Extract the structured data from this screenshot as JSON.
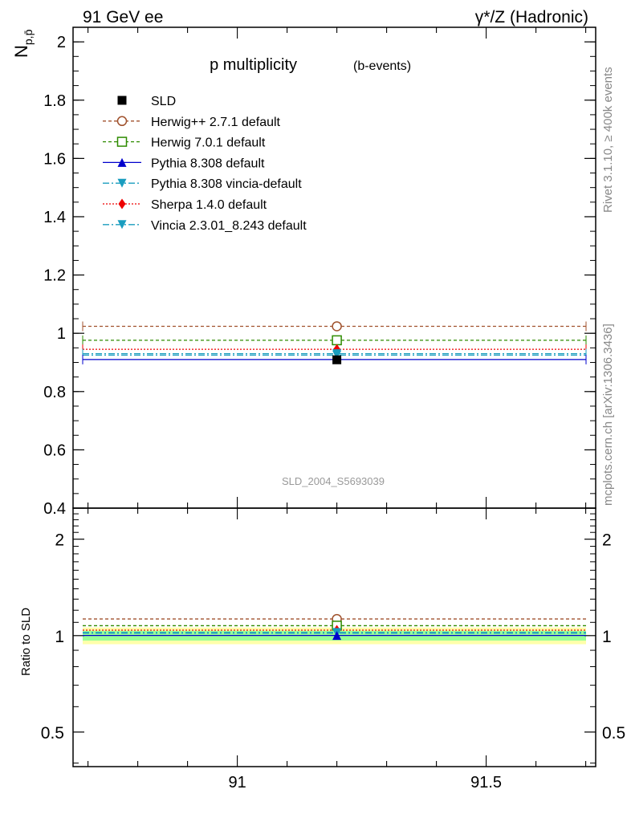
{
  "header": {
    "left": "91 GeV ee",
    "right": "γ*/Z (Hadronic)"
  },
  "side_labels": {
    "rivet": "Rivet 3.1.10, ≥ 400k events",
    "mcplots": "mcplots.cern.ch [arXiv:1306.3436]"
  },
  "chart_data": [
    {
      "type": "line",
      "title": "p multiplicity",
      "subtitle": "(b-events)",
      "ylabel": "N_{p,p̄}",
      "xlim": [
        90.67,
        91.72
      ],
      "ylim": [
        0.4,
        2.05
      ],
      "x_ticks": [],
      "y_ticks": [
        "0.4",
        "0.6",
        "0.8",
        "1",
        "1.2",
        "1.4",
        "1.6",
        "1.8",
        "2"
      ],
      "analysis_label": "SLD_2004_S5693039",
      "legend_position": "top-left",
      "bin": [
        90.67,
        91.72
      ],
      "bin_center": 91.2,
      "series": [
        {
          "name": "SLD",
          "value": 0.909,
          "color": "#000000",
          "marker": "square",
          "dash": "none",
          "is_data": true
        },
        {
          "name": "Herwig++ 2.7.1 default",
          "value": 1.024,
          "color": "#a0522d",
          "marker": "circle-open",
          "dash": "4,3"
        },
        {
          "name": "Herwig 7.0.1 default",
          "value": 0.976,
          "color": "#2e8b00",
          "marker": "square-open",
          "dash": "4,3"
        },
        {
          "name": "Pythia 8.308 default",
          "value": 0.91,
          "color": "#0000cc",
          "marker": "triangle-up",
          "dash": "none"
        },
        {
          "name": "Pythia 8.308 vincia-default",
          "value": 0.93,
          "color": "#1a9dbf",
          "marker": "triangle-down",
          "dash": "8,3,2,3"
        },
        {
          "name": "Sherpa 1.4.0 default",
          "value": 0.945,
          "color": "#ee0000",
          "marker": "diamond",
          "dash": "2,2"
        },
        {
          "name": "Vincia 2.3.01_8.243 default",
          "value": 0.925,
          "color": "#1a9dbf",
          "marker": "triangle-down",
          "dash": "8,3,2,3"
        }
      ]
    },
    {
      "type": "line",
      "ylabel": "Ratio to SLD",
      "log_y": true,
      "ylim": [
        0.39,
        2.5
      ],
      "y_ticks": [
        "0.5",
        "1",
        "2"
      ],
      "x_ticks": [
        "91",
        "91.5"
      ],
      "xlim": [
        90.67,
        91.72
      ],
      "bands": [
        {
          "lo": 0.94,
          "hi": 1.06,
          "color": "#ffffaa"
        },
        {
          "lo": 0.965,
          "hi": 1.035,
          "color": "#99ff99"
        }
      ],
      "ratios": [
        1.0,
        1.127,
        1.074,
        1.001,
        1.023,
        1.04,
        1.018
      ]
    }
  ]
}
